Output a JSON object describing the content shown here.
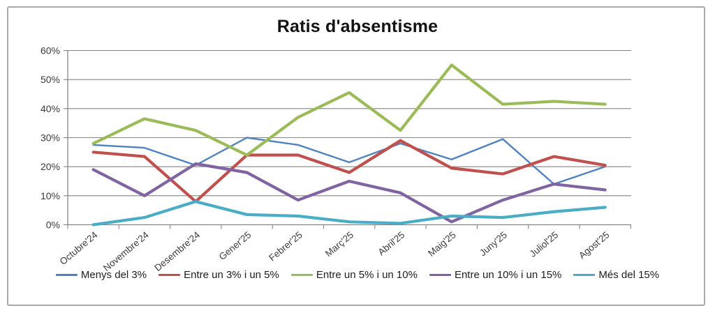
{
  "chart_data": {
    "type": "line",
    "title": "Ratis d'absentisme",
    "categories": [
      "Octubre'24",
      "Novembre'24",
      "Desembre'24",
      "Gener'25",
      "Febrer'25",
      "Març'25",
      "Abril'25",
      "Maig'25",
      "Juny'25",
      "Juliol'25",
      "Agost'25"
    ],
    "series": [
      {
        "name": "Menys del 3%",
        "color": "#4F81BD",
        "stroke_width": 2.4,
        "values": [
          27.5,
          26.5,
          20.5,
          30,
          27.5,
          21.5,
          28,
          22.5,
          29.5,
          14,
          20
        ]
      },
      {
        "name": "Entre un 3% i un 5%",
        "color": "#C0504D",
        "stroke_width": 4.2,
        "values": [
          25,
          23.5,
          8,
          24,
          24,
          18,
          29,
          19.5,
          17.5,
          23.5,
          20.5
        ]
      },
      {
        "name": "Entre un 5% i un 10%",
        "color": "#9BBB59",
        "stroke_width": 4.2,
        "values": [
          28,
          36.5,
          32.5,
          24,
          37,
          45.5,
          32.5,
          55,
          41.5,
          42.5,
          41.5
        ]
      },
      {
        "name": "Entre un 10% i un 15%",
        "color": "#8064A2",
        "stroke_width": 4.2,
        "values": [
          19,
          10,
          21,
          18,
          8.5,
          15,
          11,
          1,
          8.5,
          14,
          12
        ]
      },
      {
        "name": "Més del 15%",
        "color": "#4BACC6",
        "stroke_width": 4.2,
        "values": [
          0,
          2.5,
          8,
          3.5,
          3,
          1,
          0.5,
          3,
          2.5,
          4.5,
          6
        ]
      }
    ],
    "ylim": [
      0,
      60
    ],
    "ytick_step": 10,
    "ytick_labels": [
      "0%",
      "10%",
      "20%",
      "30%",
      "40%",
      "50%",
      "60%"
    ],
    "grid": "horizontal",
    "legend_position": "bottom",
    "colors": {
      "grid": "#848484",
      "axis": "#848484",
      "label_text": "#3a3a3a"
    }
  }
}
